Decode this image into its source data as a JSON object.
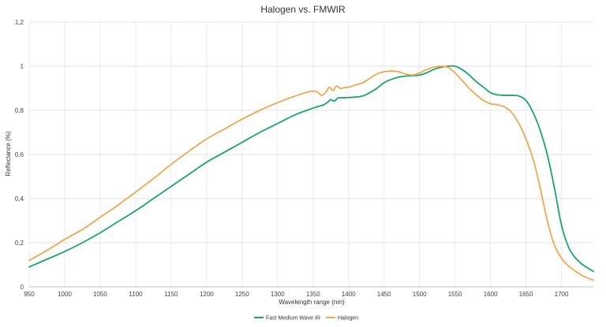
{
  "chart_data": {
    "type": "line",
    "title": "Halogen vs. FMWIR",
    "xlabel": "Wavelength range (nm)",
    "ylabel": "Reflectance (%)",
    "xlim": [
      950,
      1745
    ],
    "ylim": [
      0,
      1.2
    ],
    "x_ticks": [
      950,
      1000,
      1050,
      1100,
      1150,
      1200,
      1250,
      1300,
      1350,
      1400,
      1450,
      1500,
      1550,
      1600,
      1650,
      1700
    ],
    "x_tick_labels": [
      "950",
      "1000",
      "1050",
      "1100",
      "1150",
      "1200",
      "1250",
      "1300",
      "1350",
      "1400",
      "1450",
      "1500",
      "1550",
      "1600",
      "1650",
      "1700"
    ],
    "y_ticks": [
      0,
      0.2,
      0.4,
      0.6,
      0.8,
      1.0,
      1.2
    ],
    "y_tick_labels": [
      "0",
      "0,2",
      "0,4",
      "0,6",
      "0,8",
      "1",
      "1,2"
    ],
    "grid": true,
    "legend_position": "bottom-center",
    "series": [
      {
        "name": "Fast Medium Wave IR",
        "color": "#1aa56b",
        "x": [
          950,
          975,
          1000,
          1025,
          1050,
          1075,
          1100,
          1125,
          1150,
          1175,
          1200,
          1225,
          1250,
          1275,
          1300,
          1325,
          1350,
          1360,
          1365,
          1370,
          1375,
          1380,
          1385,
          1390,
          1400,
          1410,
          1420,
          1430,
          1440,
          1450,
          1460,
          1470,
          1480,
          1490,
          1500,
          1510,
          1520,
          1530,
          1540,
          1550,
          1560,
          1570,
          1580,
          1590,
          1600,
          1610,
          1620,
          1630,
          1640,
          1650,
          1660,
          1670,
          1680,
          1690,
          1700,
          1710,
          1720,
          1730,
          1745
        ],
        "values": [
          0.09,
          0.125,
          0.16,
          0.2,
          0.245,
          0.295,
          0.345,
          0.4,
          0.455,
          0.51,
          0.565,
          0.61,
          0.655,
          0.7,
          0.74,
          0.78,
          0.81,
          0.82,
          0.825,
          0.835,
          0.848,
          0.842,
          0.856,
          0.857,
          0.858,
          0.86,
          0.865,
          0.88,
          0.9,
          0.925,
          0.94,
          0.95,
          0.955,
          0.957,
          0.96,
          0.97,
          0.985,
          0.995,
          1.0,
          1.0,
          0.985,
          0.96,
          0.93,
          0.905,
          0.88,
          0.87,
          0.868,
          0.868,
          0.865,
          0.845,
          0.79,
          0.71,
          0.6,
          0.45,
          0.28,
          0.18,
          0.13,
          0.1,
          0.07
        ]
      },
      {
        "name": "Halogen",
        "color": "#f0a850",
        "x": [
          950,
          975,
          1000,
          1025,
          1050,
          1075,
          1100,
          1125,
          1150,
          1175,
          1200,
          1225,
          1250,
          1275,
          1300,
          1325,
          1345,
          1355,
          1362,
          1368,
          1373,
          1378,
          1383,
          1388,
          1393,
          1400,
          1410,
          1420,
          1430,
          1440,
          1450,
          1460,
          1470,
          1480,
          1490,
          1500,
          1510,
          1520,
          1530,
          1540,
          1550,
          1560,
          1570,
          1580,
          1590,
          1600,
          1610,
          1620,
          1630,
          1640,
          1650,
          1660,
          1670,
          1680,
          1690,
          1700,
          1710,
          1720,
          1730,
          1745
        ],
        "values": [
          0.12,
          0.165,
          0.215,
          0.26,
          0.315,
          0.37,
          0.43,
          0.49,
          0.555,
          0.615,
          0.67,
          0.715,
          0.76,
          0.8,
          0.835,
          0.865,
          0.885,
          0.885,
          0.868,
          0.883,
          0.905,
          0.89,
          0.91,
          0.9,
          0.902,
          0.905,
          0.915,
          0.925,
          0.945,
          0.965,
          0.975,
          0.978,
          0.975,
          0.965,
          0.96,
          0.97,
          0.985,
          0.995,
          1.0,
          0.995,
          0.97,
          0.935,
          0.9,
          0.87,
          0.845,
          0.83,
          0.825,
          0.815,
          0.79,
          0.74,
          0.67,
          0.58,
          0.45,
          0.3,
          0.19,
          0.13,
          0.095,
          0.07,
          0.05,
          0.03
        ]
      }
    ]
  }
}
